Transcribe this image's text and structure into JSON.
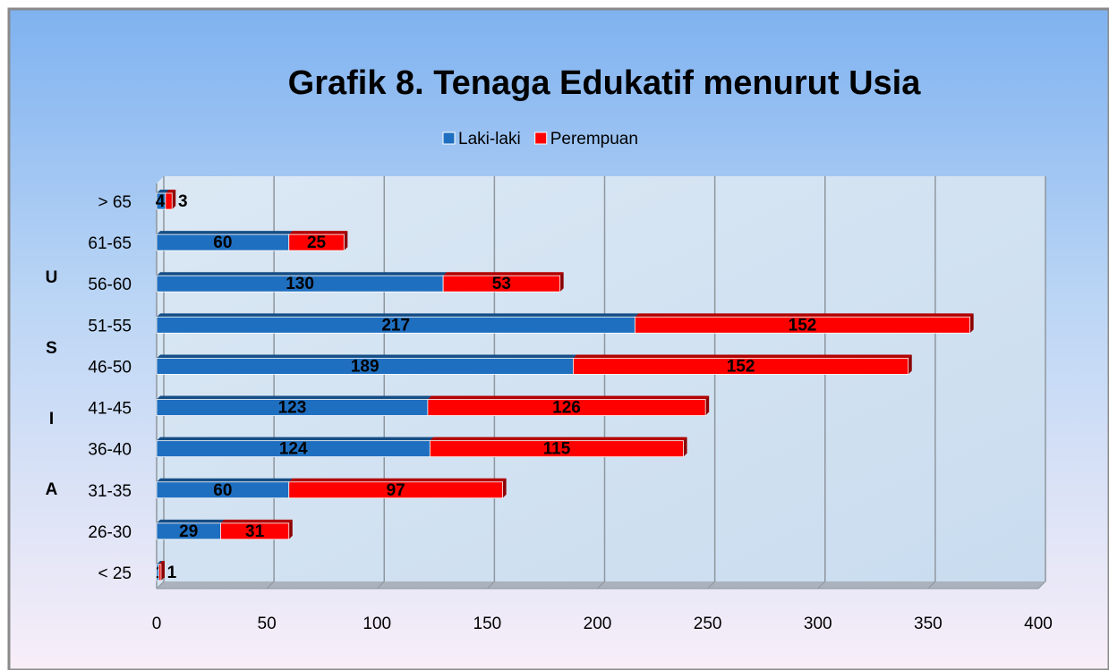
{
  "chart_data": {
    "type": "bar",
    "orientation": "horizontal",
    "stacked": true,
    "title": "Grafik 8. Tenaga Edukatif menurut Usia",
    "y_label": "USIA",
    "categories": [
      "< 25",
      "26-30",
      "31-35",
      "36-40",
      "41-45",
      "46-50",
      "51-55",
      "56-60",
      "61-65",
      "> 65"
    ],
    "series": [
      {
        "name": "Laki-laki",
        "color": "#1f6fc0",
        "values": [
          1,
          29,
          60,
          124,
          123,
          189,
          217,
          130,
          60,
          4
        ]
      },
      {
        "name": "Perempuan",
        "color": "#ff0000",
        "values": [
          1,
          31,
          97,
          115,
          126,
          152,
          152,
          53,
          25,
          3
        ]
      }
    ],
    "xlim": [
      0,
      400
    ],
    "xticks": [
      0,
      50,
      100,
      150,
      200,
      250,
      300,
      350,
      400
    ],
    "grid": true,
    "legend": "top"
  }
}
